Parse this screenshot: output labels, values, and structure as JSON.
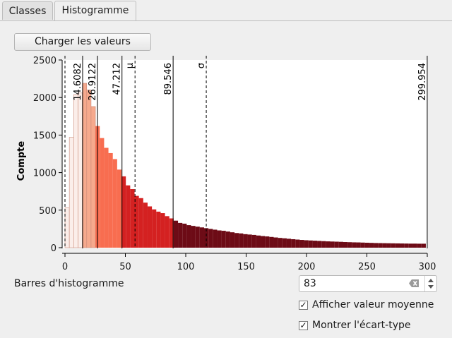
{
  "tabs": [
    {
      "label": "Classes",
      "active": false
    },
    {
      "label": "Histogramme",
      "active": true
    }
  ],
  "load_button": "Charger les valeurs",
  "bins_label": "Barres d'histogramme",
  "bins_value": "83",
  "show_mean_label": "Afficher valeur moyenne",
  "show_mean_checked": "✓",
  "show_std_label": "Montrer l'écart-type",
  "show_std_checked": "✓",
  "icons": {
    "clear": "clear-text-icon",
    "spin_up": "spin-up-icon",
    "spin_down": "spin-down-icon"
  },
  "chart_data": {
    "type": "bar",
    "ylabel": "Compte",
    "xlim": [
      0,
      300
    ],
    "ylim": [
      0,
      2500
    ],
    "x_ticks": [
      0,
      50,
      100,
      150,
      200,
      250,
      300
    ],
    "y_ticks": [
      0,
      500,
      1000,
      1500,
      2000,
      2500
    ],
    "bin_width": 3.6,
    "x_start": 0,
    "values": [
      530,
      1470,
      2040,
      2060,
      2190,
      2100,
      1880,
      1620,
      1460,
      1330,
      1260,
      1180,
      1040,
      950,
      830,
      780,
      690,
      660,
      600,
      550,
      510,
      480,
      460,
      420,
      390,
      360,
      330,
      320,
      300,
      290,
      280,
      270,
      260,
      250,
      240,
      230,
      225,
      215,
      205,
      195,
      190,
      180,
      175,
      170,
      162,
      155,
      150,
      143,
      136,
      130,
      125,
      119,
      113,
      108,
      103,
      99,
      96,
      93,
      90,
      87,
      84,
      82,
      80,
      78,
      75,
      73,
      71,
      70,
      68,
      66,
      64,
      62,
      61,
      60,
      59,
      58,
      57,
      56,
      55,
      54,
      54,
      53,
      53
    ],
    "class_breaks": [
      14.6082,
      26.9122,
      47.212,
      89.546,
      299.954
    ],
    "class_colors": [
      "#fbeeea",
      "#f6a98d",
      "#f86d50",
      "#d42121",
      "#6d0b16"
    ],
    "mean": 58,
    "mean_label": "μ",
    "std_upper": 117,
    "std_label": "σ"
  }
}
